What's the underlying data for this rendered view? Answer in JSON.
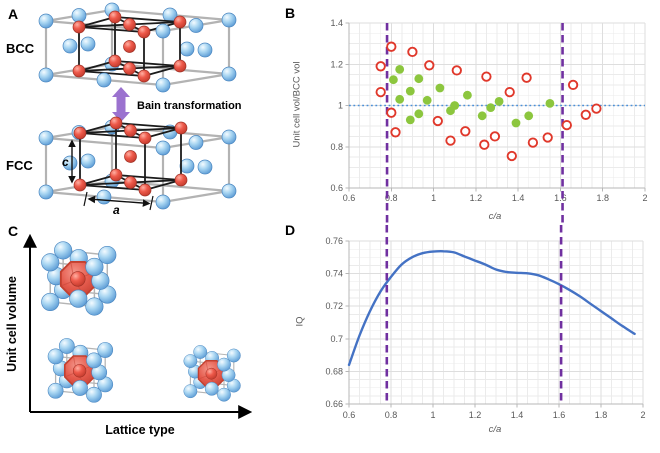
{
  "figure": {
    "background": "#ffffff",
    "panels": {
      "a": {
        "label": "A",
        "bcc": "BCC",
        "fcc": "FCC",
        "arrow_text": "Bain transformation",
        "dim_c": "c",
        "dim_a": "a"
      },
      "b": {
        "label": "B"
      },
      "c": {
        "label": "C",
        "ylabel": "Unit cell volume",
        "xlabel": "Lattice type"
      },
      "d": {
        "label": "D"
      }
    }
  },
  "colors": {
    "marker_red": "#e0382b",
    "marker_green": "#8cc63e",
    "dashed_purple": "#7030a0",
    "dotted_blue": "#4a90d9",
    "curve_blue": "#4472c4",
    "grid_minor": "#ebebeb",
    "grid_major": "#dedede",
    "axis": "#b7b7b7",
    "tick_text": "#595959",
    "sphere_blue": "#9fd0f0",
    "sphere_red": "#e8564a",
    "box_gray": "#b3b3b3",
    "cell_black": "#1b1b1b",
    "arrow_purple": "#9b72cf"
  },
  "chart_data": [
    {
      "id": "B",
      "type": "scatter",
      "xlabel": "c/a",
      "ylabel": "Unit cell vol/BCC vol",
      "xlim": [
        0.6,
        2
      ],
      "ylim": [
        0.6,
        1.4
      ],
      "xticks": [
        0.6,
        0.8,
        1,
        1.2,
        1.4,
        1.6,
        1.8,
        2
      ],
      "xtick_labels": [
        "0.6",
        "0.8",
        "1",
        "1.2",
        "1.4",
        "1.6",
        "1.8",
        "2"
      ],
      "yticks": [
        0.6,
        0.8,
        1,
        1.2,
        1.4
      ],
      "ytick_labels": [
        "0.6",
        "0.8",
        "1",
        "1.2",
        "1.4"
      ],
      "x_minor_step": 0.05,
      "y_minor_step": 0.05,
      "grid": true,
      "hline_dotted_y": 1,
      "vlines_dashed_x": [
        0.78,
        1.61
      ],
      "series": [
        {
          "name": "open-red-circles",
          "marker": "open-circle",
          "color": "#e0382b",
          "points": [
            [
              0.75,
              1.19
            ],
            [
              0.8,
              1.285
            ],
            [
              0.9,
              1.26
            ],
            [
              0.98,
              1.195
            ],
            [
              1.11,
              1.17
            ],
            [
              1.25,
              1.14
            ],
            [
              1.44,
              1.135
            ],
            [
              1.66,
              1.1
            ],
            [
              0.75,
              1.065
            ],
            [
              1.36,
              1.065
            ],
            [
              0.8,
              0.965
            ],
            [
              1.77,
              0.985
            ],
            [
              1.72,
              0.955
            ],
            [
              1.02,
              0.925
            ],
            [
              1.63,
              0.905
            ],
            [
              1.15,
              0.875
            ],
            [
              0.82,
              0.87
            ],
            [
              1.08,
              0.83
            ],
            [
              1.29,
              0.85
            ],
            [
              1.54,
              0.845
            ],
            [
              1.24,
              0.81
            ],
            [
              1.47,
              0.82
            ],
            [
              1.37,
              0.755
            ]
          ]
        },
        {
          "name": "filled-green-circles",
          "marker": "filled-circle",
          "color": "#8cc63e",
          "points": [
            [
              0.84,
              1.175
            ],
            [
              0.81,
              1.125
            ],
            [
              0.93,
              1.13
            ],
            [
              0.89,
              1.07
            ],
            [
              1.03,
              1.085
            ],
            [
              1.16,
              1.05
            ],
            [
              0.84,
              1.03
            ],
            [
              0.97,
              1.025
            ],
            [
              1.31,
              1.02
            ],
            [
              1.1,
              1.0
            ],
            [
              1.55,
              1.01
            ],
            [
              1.08,
              0.975
            ],
            [
              1.27,
              0.99
            ],
            [
              0.93,
              0.96
            ],
            [
              1.23,
              0.95
            ],
            [
              0.89,
              0.93
            ],
            [
              1.45,
              0.95
            ],
            [
              1.39,
              0.915
            ]
          ]
        }
      ]
    },
    {
      "id": "D",
      "type": "line",
      "xlabel": "c/a",
      "ylabel": "IQ",
      "xlim": [
        0.6,
        2
      ],
      "ylim": [
        0.66,
        0.76
      ],
      "xticks": [
        0.6,
        0.8,
        1,
        1.2,
        1.4,
        1.6,
        1.8,
        2
      ],
      "xtick_labels": [
        "0.6",
        "0.8",
        "1",
        "1.2",
        "1.4",
        "1.6",
        "1.8",
        "2"
      ],
      "yticks": [
        0.66,
        0.68,
        0.7,
        0.72,
        0.74,
        0.76
      ],
      "ytick_labels": [
        "0.66",
        "0.68",
        "0.7",
        "0.72",
        "0.74",
        "0.76"
      ],
      "x_minor_step": 0.05,
      "y_minor_step": 0.005,
      "grid": true,
      "vlines_dashed_x": [
        0.78,
        1.61
      ],
      "series": [
        {
          "name": "IQ-curve",
          "color": "#4472c4",
          "points": [
            [
              0.6,
              0.684
            ],
            [
              0.65,
              0.702
            ],
            [
              0.7,
              0.717
            ],
            [
              0.75,
              0.729
            ],
            [
              0.8,
              0.738
            ],
            [
              0.85,
              0.7455
            ],
            [
              0.9,
              0.75
            ],
            [
              0.95,
              0.7525
            ],
            [
              1.0,
              0.7535
            ],
            [
              1.05,
              0.7537
            ],
            [
              1.1,
              0.753
            ],
            [
              1.15,
              0.7505
            ],
            [
              1.2,
              0.748
            ],
            [
              1.25,
              0.7455
            ],
            [
              1.3,
              0.7425
            ],
            [
              1.35,
              0.741
            ],
            [
              1.4,
              0.7405
            ],
            [
              1.45,
              0.7402
            ],
            [
              1.5,
              0.739
            ],
            [
              1.55,
              0.7365
            ],
            [
              1.6,
              0.7335
            ],
            [
              1.65,
              0.73
            ],
            [
              1.7,
              0.726
            ],
            [
              1.75,
              0.7215
            ],
            [
              1.8,
              0.717
            ],
            [
              1.85,
              0.7125
            ],
            [
              1.9,
              0.708
            ],
            [
              1.96,
              0.703
            ]
          ]
        }
      ]
    }
  ]
}
